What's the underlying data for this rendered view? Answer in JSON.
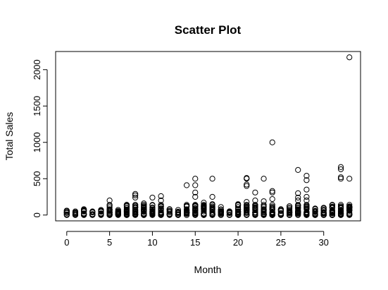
{
  "chart_data": {
    "type": "scatter",
    "title": "Scatter Plot",
    "xlabel": "Month",
    "ylabel": "Total Sales",
    "xlim": [
      -1.3,
      34.3
    ],
    "ylim": [
      -80,
      2250
    ],
    "x_ticks": [
      0,
      5,
      10,
      15,
      20,
      25,
      30
    ],
    "x_tick_labels": [
      "0",
      "5",
      "10",
      "15",
      "20",
      "25",
      "30"
    ],
    "y_ticks": [
      0,
      500,
      1000,
      1500,
      2000
    ],
    "y_tick_labels": [
      "0",
      "500",
      "1000",
      "1500",
      "2000"
    ],
    "grid": false,
    "legend": "none",
    "marker": "open-circle",
    "column_max_by_month": [
      60,
      50,
      80,
      50,
      70,
      200,
      70,
      140,
      290,
      160,
      240,
      260,
      80,
      70,
      410,
      500,
      170,
      500,
      110,
      50,
      150,
      510,
      310,
      500,
      1000,
      80,
      120,
      620,
      540,
      90,
      100,
      140,
      660,
      2170
    ],
    "points": [
      {
        "x": 5,
        "y": 200
      },
      {
        "x": 7,
        "y": 140
      },
      {
        "x": 8,
        "y": 290
      },
      {
        "x": 8,
        "y": 270
      },
      {
        "x": 8,
        "y": 240
      },
      {
        "x": 9,
        "y": 160
      },
      {
        "x": 10,
        "y": 240
      },
      {
        "x": 11,
        "y": 260
      },
      {
        "x": 11,
        "y": 200
      },
      {
        "x": 14,
        "y": 410
      },
      {
        "x": 15,
        "y": 500
      },
      {
        "x": 15,
        "y": 410
      },
      {
        "x": 15,
        "y": 310
      },
      {
        "x": 15,
        "y": 250
      },
      {
        "x": 16,
        "y": 170
      },
      {
        "x": 17,
        "y": 500
      },
      {
        "x": 17,
        "y": 250
      },
      {
        "x": 17,
        "y": 150
      },
      {
        "x": 20,
        "y": 150
      },
      {
        "x": 21,
        "y": 510
      },
      {
        "x": 21,
        "y": 500
      },
      {
        "x": 21,
        "y": 420
      },
      {
        "x": 21,
        "y": 400
      },
      {
        "x": 21,
        "y": 180
      },
      {
        "x": 22,
        "y": 310
      },
      {
        "x": 22,
        "y": 200
      },
      {
        "x": 23,
        "y": 500
      },
      {
        "x": 23,
        "y": 190
      },
      {
        "x": 24,
        "y": 1000
      },
      {
        "x": 24,
        "y": 330
      },
      {
        "x": 24,
        "y": 310
      },
      {
        "x": 24,
        "y": 220
      },
      {
        "x": 26,
        "y": 120
      },
      {
        "x": 27,
        "y": 620
      },
      {
        "x": 27,
        "y": 300
      },
      {
        "x": 27,
        "y": 240
      },
      {
        "x": 27,
        "y": 200
      },
      {
        "x": 28,
        "y": 540
      },
      {
        "x": 28,
        "y": 480
      },
      {
        "x": 28,
        "y": 350
      },
      {
        "x": 28,
        "y": 250
      },
      {
        "x": 28,
        "y": 200
      },
      {
        "x": 31,
        "y": 140
      },
      {
        "x": 32,
        "y": 660
      },
      {
        "x": 32,
        "y": 630
      },
      {
        "x": 32,
        "y": 520
      },
      {
        "x": 32,
        "y": 500
      },
      {
        "x": 33,
        "y": 2170
      },
      {
        "x": 33,
        "y": 500
      }
    ]
  }
}
